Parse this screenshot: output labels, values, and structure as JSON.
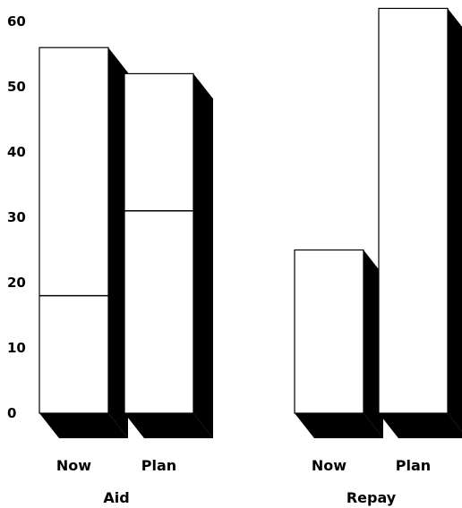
{
  "chart_data": {
    "type": "bar",
    "style": "3d-stacked",
    "groups": [
      {
        "label": "Aid",
        "bars": [
          {
            "label": "Now",
            "segments": [
              18,
              38
            ]
          },
          {
            "label": "Plan",
            "segments": [
              31,
              21
            ]
          }
        ]
      },
      {
        "label": "Repay",
        "bars": [
          {
            "label": "Now",
            "segments": [
              25
            ]
          },
          {
            "label": "Plan",
            "segments": [
              62
            ]
          }
        ]
      }
    ],
    "yticks": [
      0,
      10,
      20,
      30,
      40,
      50,
      60
    ],
    "ylim": [
      0,
      62
    ],
    "title": "",
    "xlabel": "",
    "ylabel": "",
    "grid": false,
    "legend": "none",
    "colors": {
      "face": "#ffffff",
      "shadow": "#000000",
      "outline": "#000000"
    }
  }
}
